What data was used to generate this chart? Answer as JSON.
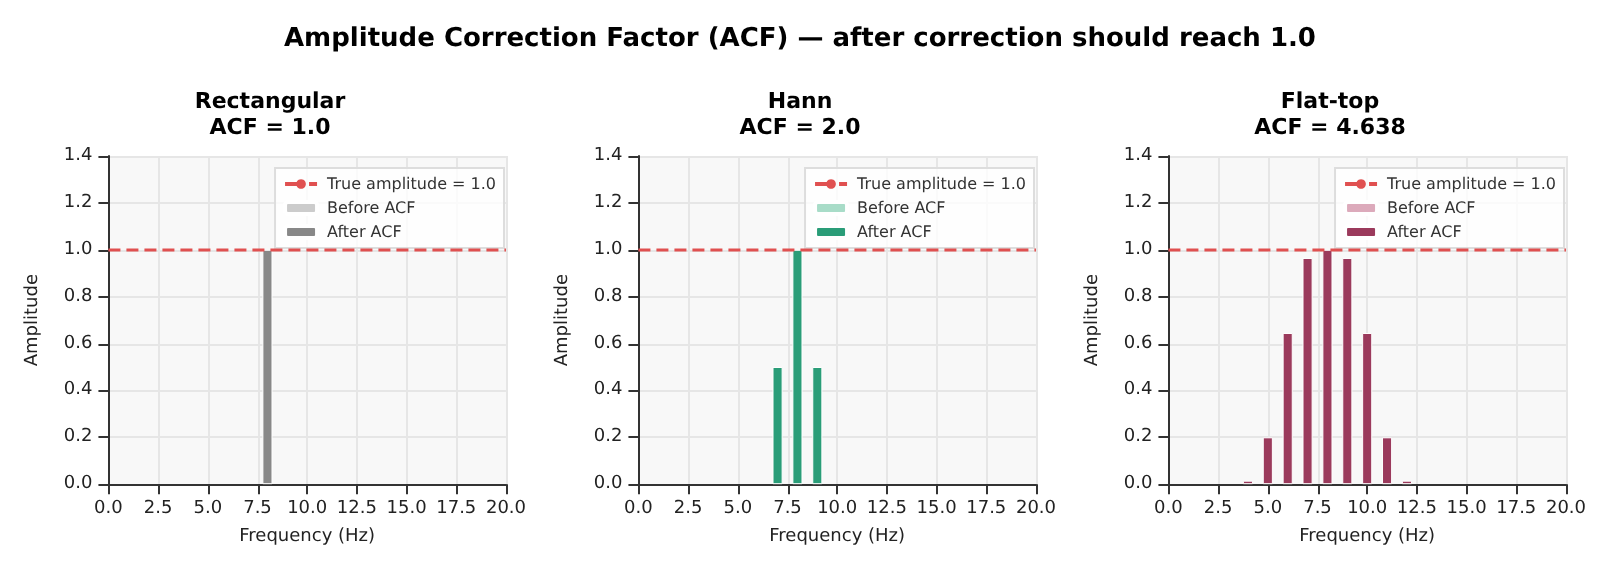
{
  "chart_data": [
    {
      "type": "bar",
      "title": "Rectangular",
      "subtitle": "ACF = 1.0",
      "xlabel": "Frequency (Hz)",
      "ylabel": "Amplitude",
      "annotations": [
        "Amplitude Correction Factor (ACF) — after correction should reach 1.0"
      ],
      "x": [
        8
      ],
      "series": [
        {
          "name": "Before ACF",
          "color": "#cccccc",
          "values": [
            null
          ]
        },
        {
          "name": "After ACF",
          "color": "#888888",
          "values": [
            1.0
          ]
        }
      ],
      "xlim": [
        0,
        20
      ],
      "xticks": [
        {
          "value": 0,
          "label": "0.0"
        },
        {
          "value": 2.5,
          "label": "2.5"
        },
        {
          "value": 5,
          "label": "5.0"
        },
        {
          "value": 7.5,
          "label": "7.5"
        },
        {
          "value": 10,
          "label": "10.0"
        },
        {
          "value": 12.5,
          "label": "12.5"
        },
        {
          "value": 15,
          "label": "15.0"
        },
        {
          "value": 17.5,
          "label": "17.5"
        },
        {
          "value": 20,
          "label": "20.0"
        }
      ],
      "ylim": [
        0,
        1.4
      ],
      "yticks": [
        {
          "value": 0,
          "label": "0.0"
        },
        {
          "value": 0.2,
          "label": "0.2"
        },
        {
          "value": 0.4,
          "label": "0.4"
        },
        {
          "value": 0.6,
          "label": "0.6"
        },
        {
          "value": 0.8,
          "label": "0.8"
        },
        {
          "value": 1,
          "label": "1.0"
        },
        {
          "value": 1.2,
          "label": "1.2"
        },
        {
          "value": 1.4,
          "label": "1.4"
        }
      ],
      "ref_lines": [
        {
          "axis": "y",
          "value": 1,
          "label": "True amplitude = 1.0",
          "color": "#e05050",
          "line_style": "dashed"
        }
      ],
      "grid": true,
      "legend": "top right"
    },
    {
      "type": "bar",
      "title": "Hann",
      "subtitle": "ACF = 2.0",
      "xlabel": "Frequency (Hz)",
      "ylabel": "Amplitude",
      "x": [
        7,
        8,
        9
      ],
      "series": [
        {
          "name": "Before ACF",
          "color": "#a8dcc8",
          "values": [
            null,
            null,
            null
          ]
        },
        {
          "name": "After ACF",
          "color": "#2a9d78",
          "values": [
            0.5,
            1.0,
            0.5
          ]
        }
      ],
      "xlim": [
        0,
        20
      ],
      "xticks": [
        {
          "value": 0,
          "label": "0.0"
        },
        {
          "value": 2.5,
          "label": "2.5"
        },
        {
          "value": 5,
          "label": "5.0"
        },
        {
          "value": 7.5,
          "label": "7.5"
        },
        {
          "value": 10,
          "label": "10.0"
        },
        {
          "value": 12.5,
          "label": "12.5"
        },
        {
          "value": 15,
          "label": "15.0"
        },
        {
          "value": 17.5,
          "label": "17.5"
        },
        {
          "value": 20,
          "label": "20.0"
        }
      ],
      "ylim": [
        0,
        1.4
      ],
      "yticks": [
        {
          "value": 0,
          "label": "0.0"
        },
        {
          "value": 0.2,
          "label": "0.2"
        },
        {
          "value": 0.4,
          "label": "0.4"
        },
        {
          "value": 0.6,
          "label": "0.6"
        },
        {
          "value": 0.8,
          "label": "0.8"
        },
        {
          "value": 1,
          "label": "1.0"
        },
        {
          "value": 1.2,
          "label": "1.2"
        },
        {
          "value": 1.4,
          "label": "1.4"
        }
      ],
      "ref_lines": [
        {
          "axis": "y",
          "value": 1,
          "label": "True amplitude = 1.0",
          "color": "#e05050",
          "line_style": "dashed"
        }
      ],
      "grid": true,
      "legend": "top right"
    },
    {
      "type": "bar",
      "title": "Flat-top",
      "subtitle": "ACF = 4.638",
      "xlabel": "Frequency (Hz)",
      "ylabel": "Amplitude",
      "x": [
        4,
        5,
        6,
        7,
        8,
        9,
        10,
        11,
        12
      ],
      "series": [
        {
          "name": "Before ACF",
          "color": "#dcaabb",
          "values": [
            null,
            null,
            null,
            null,
            null,
            null,
            null,
            null,
            null
          ]
        },
        {
          "name": "After ACF",
          "color": "#9b3a5c",
          "values": [
            0.015,
            0.2,
            0.645,
            0.965,
            1.0,
            0.965,
            0.645,
            0.2,
            0.015
          ]
        }
      ],
      "xlim": [
        0,
        20
      ],
      "xticks": [
        {
          "value": 0,
          "label": "0.0"
        },
        {
          "value": 2.5,
          "label": "2.5"
        },
        {
          "value": 5,
          "label": "5.0"
        },
        {
          "value": 7.5,
          "label": "7.5"
        },
        {
          "value": 10,
          "label": "10.0"
        },
        {
          "value": 12.5,
          "label": "12.5"
        },
        {
          "value": 15,
          "label": "15.0"
        },
        {
          "value": 17.5,
          "label": "17.5"
        },
        {
          "value": 20,
          "label": "20.0"
        }
      ],
      "ylim": [
        0,
        1.4
      ],
      "yticks": [
        {
          "value": 0,
          "label": "0.0"
        },
        {
          "value": 0.2,
          "label": "0.2"
        },
        {
          "value": 0.4,
          "label": "0.4"
        },
        {
          "value": 0.6,
          "label": "0.6"
        },
        {
          "value": 0.8,
          "label": "0.8"
        },
        {
          "value": 1,
          "label": "1.0"
        },
        {
          "value": 1.2,
          "label": "1.2"
        },
        {
          "value": 1.4,
          "label": "1.4"
        }
      ],
      "ref_lines": [
        {
          "axis": "y",
          "value": 1,
          "label": "True amplitude = 1.0",
          "color": "#e05050",
          "line_style": "dashed"
        }
      ],
      "grid": true,
      "legend": "top right"
    }
  ]
}
